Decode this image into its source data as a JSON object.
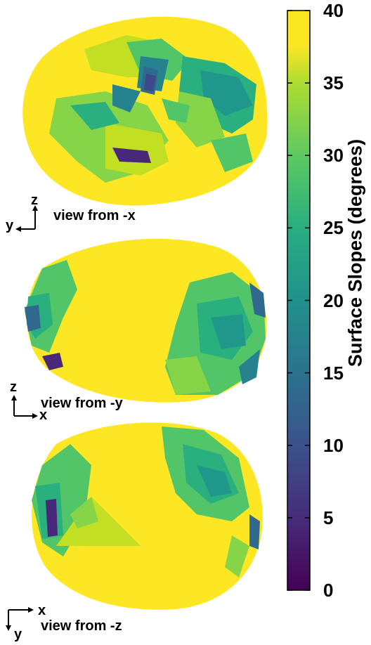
{
  "views": [
    {
      "label": "view from -x",
      "axis_h": "y",
      "axis_v": "z"
    },
    {
      "label": "view from -y",
      "axis_h": "x",
      "axis_v": "z"
    },
    {
      "label": "view from -z",
      "axis_h": "x",
      "axis_v": "y"
    }
  ],
  "colorbar": {
    "title": "Surface Slopes (degrees)",
    "min": 0,
    "max": 40,
    "ticks": [
      "0",
      "5",
      "10",
      "15",
      "20",
      "25",
      "30",
      "35",
      "40"
    ],
    "colormap": [
      "#440154",
      "#3b528b",
      "#21918c",
      "#5ec962",
      "#fde725"
    ]
  },
  "colors": {
    "yellow": "#fde725",
    "light_yellow": "#f3e51e",
    "yellow_green": "#c2df23",
    "green": "#86d549",
    "mid_green": "#52c569",
    "teal_green": "#2ab07f",
    "teal": "#1f988b",
    "blue_teal": "#26828e",
    "blue": "#31688e",
    "indigo": "#3e4989",
    "purple": "#482878",
    "dark_purple": "#440154"
  }
}
